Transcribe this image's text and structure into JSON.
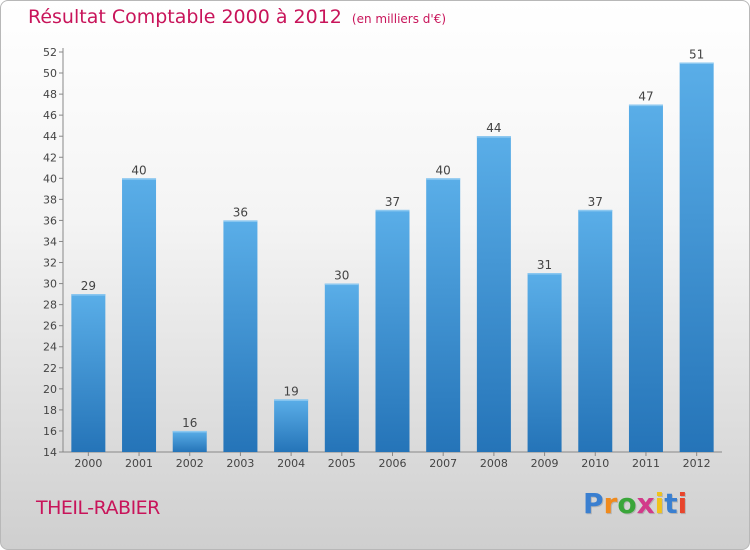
{
  "chart_data": {
    "type": "bar",
    "title": "Résultat Comptable 2000 à 2012",
    "subtitle": "(en milliers d'€)",
    "categories": [
      "2000",
      "2001",
      "2002",
      "2003",
      "2004",
      "2005",
      "2006",
      "2007",
      "2008",
      "2009",
      "2010",
      "2011",
      "2012"
    ],
    "values": [
      29,
      40,
      16,
      36,
      19,
      30,
      37,
      40,
      44,
      31,
      37,
      47,
      51
    ],
    "data_labels": [
      "29",
      "40",
      "16",
      "36",
      "19",
      "30",
      "37",
      "40",
      "44",
      "31",
      "37",
      "47",
      "51"
    ],
    "ylim": [
      14,
      52
    ],
    "yticks": [
      14,
      16,
      18,
      20,
      22,
      24,
      26,
      28,
      30,
      32,
      34,
      36,
      38,
      40,
      42,
      44,
      46,
      48,
      50,
      52
    ],
    "xlabel": "",
    "ylabel": "",
    "grid": false,
    "colors": {
      "bar_top": "#5aaee8",
      "bar_bottom": "#2574b8",
      "title": "#c8145a",
      "label": "#444444"
    }
  },
  "footer": {
    "commune": "THEIL-RABIER",
    "logo_letters": [
      "P",
      "r",
      "o",
      "x",
      "i",
      "t",
      "i"
    ],
    "logo_colors": [
      "#3a7fd0",
      "#f08a1c",
      "#3aa63a",
      "#d23a8a",
      "#f0c21c",
      "#3a7fd0",
      "#e8452c"
    ]
  }
}
